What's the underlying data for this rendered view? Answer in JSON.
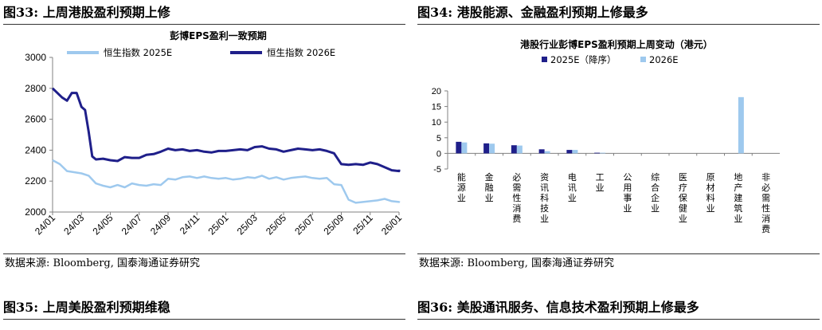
{
  "fig33": {
    "title": "图33:  上周港股盈利预期上修",
    "source": "数据来源:  Bloomberg,  国泰海通证券研究"
  },
  "fig34": {
    "title": "图34:  港股能源、金融盈利预期上修最多",
    "source": "数据来源:  Bloomberg,  国泰海通证券研究"
  },
  "fig35": {
    "title": "图35:  上周美股盈利预期维稳"
  },
  "fig36": {
    "title": "图36:  美股通讯服务、信息技术盈利预期上修最多"
  },
  "colors": {
    "light_blue": "#9ec9ee",
    "navy": "#1f1f8a",
    "axis": "#808080"
  },
  "chart_data": [
    {
      "type": "line",
      "title": "彭博EPS盈利一致预期",
      "legend_placement": "top",
      "grid": false,
      "ylim": [
        2000,
        3000
      ],
      "yticks": [
        2000,
        2200,
        2400,
        2600,
        2800,
        3000
      ],
      "xticks": [
        "24/01",
        "24/03",
        "24/05",
        "24/07",
        "24/09",
        "24/11",
        "25/01",
        "25/03",
        "25/05",
        "25/07",
        "25/09",
        "25/11",
        "26/01"
      ],
      "series": [
        {
          "name": "恒生指数 2025E",
          "color": "#9ec9ee",
          "x": [
            "24/01",
            "24/01",
            "24/02",
            "24/03",
            "24/03",
            "24/04",
            "24/04",
            "24/05",
            "24/05",
            "24/06",
            "24/06",
            "24/07",
            "24/07",
            "24/08",
            "24/08",
            "24/09",
            "24/09",
            "24/10",
            "24/10",
            "24/11",
            "24/11",
            "24/12",
            "24/12",
            "25/01",
            "25/01",
            "25/02",
            "25/02",
            "25/03",
            "25/03",
            "25/04",
            "25/04",
            "25/05",
            "25/05",
            "25/06",
            "25/06",
            "25/07",
            "25/07",
            "25/08",
            "25/08",
            "25/09",
            "25/09",
            "25/10",
            "25/10",
            "25/11",
            "25/11",
            "25/12",
            "25/12",
            "26/01",
            "26/01"
          ],
          "values": [
            2335,
            2310,
            2265,
            2250,
            2235,
            2185,
            2170,
            2160,
            2175,
            2160,
            2185,
            2175,
            2170,
            2180,
            2175,
            2215,
            2210,
            2225,
            2230,
            2220,
            2230,
            2220,
            2215,
            2220,
            2210,
            2215,
            2225,
            2220,
            2235,
            2215,
            2225,
            2210,
            2220,
            2225,
            2230,
            2220,
            2215,
            2220,
            2180,
            2175,
            2080,
            2060,
            2065,
            2070,
            2075,
            2085,
            2070,
            2065,
            2070
          ]
        },
        {
          "name": "恒生指数 2026E",
          "color": "#1f1f8a",
          "x": [
            "24/01",
            "24/01",
            "24/01",
            "24/02",
            "24/02",
            "24/02",
            "24/03",
            "24/03",
            "24/03",
            "24/03",
            "24/04",
            "24/04",
            "24/05",
            "24/05",
            "24/06",
            "24/06",
            "24/07",
            "24/07",
            "24/08",
            "24/08",
            "24/09",
            "24/09",
            "24/10",
            "24/10",
            "24/11",
            "24/11",
            "24/12",
            "24/12",
            "25/01",
            "25/01",
            "25/02",
            "25/02",
            "25/03",
            "25/03",
            "25/04",
            "25/04",
            "25/05",
            "25/05",
            "25/06",
            "25/06",
            "25/07",
            "25/07",
            "25/08",
            "25/08",
            "25/09",
            "25/09",
            "25/10",
            "25/10",
            "25/11",
            "25/11",
            "25/12",
            "25/12",
            "26/01",
            "26/01"
          ],
          "values": [
            2800,
            2770,
            2740,
            2720,
            2770,
            2770,
            2680,
            2660,
            2520,
            2360,
            2340,
            2345,
            2335,
            2330,
            2355,
            2350,
            2350,
            2370,
            2375,
            2390,
            2410,
            2400,
            2405,
            2395,
            2400,
            2390,
            2385,
            2395,
            2395,
            2400,
            2405,
            2400,
            2420,
            2425,
            2410,
            2405,
            2390,
            2400,
            2410,
            2405,
            2400,
            2405,
            2395,
            2380,
            2310,
            2305,
            2310,
            2305,
            2320,
            2310,
            2290,
            2270,
            2265,
            2275
          ]
        }
      ]
    },
    {
      "type": "bar",
      "title": "港股行业彭博EPS盈利预期上周变动（港元）",
      "legend_placement": "top",
      "grid": false,
      "ylim": [
        -5,
        20
      ],
      "yticks": [
        -5,
        0,
        5,
        10,
        15,
        20
      ],
      "categories": [
        "能源业",
        "金融业",
        "必需性消费",
        "资讯科技业",
        "电讯业",
        "工业",
        "公用事业",
        "综合企业",
        "医疗保健业",
        "原材料业",
        "地产建筑业",
        "非必需性消费"
      ],
      "series": [
        {
          "name": "2025E（降序）",
          "color": "#1f1f8a",
          "values": [
            3.7,
            3.2,
            2.6,
            1.3,
            1.1,
            0.2,
            0.0,
            0.0,
            0.0,
            0.0,
            0.0,
            0.0
          ]
        },
        {
          "name": "2026E",
          "color": "#9ec9ee",
          "values": [
            3.5,
            3.1,
            2.5,
            0.7,
            1.1,
            0.2,
            0.0,
            0.0,
            0.0,
            0.0,
            18.0,
            0.0
          ]
        }
      ]
    }
  ]
}
